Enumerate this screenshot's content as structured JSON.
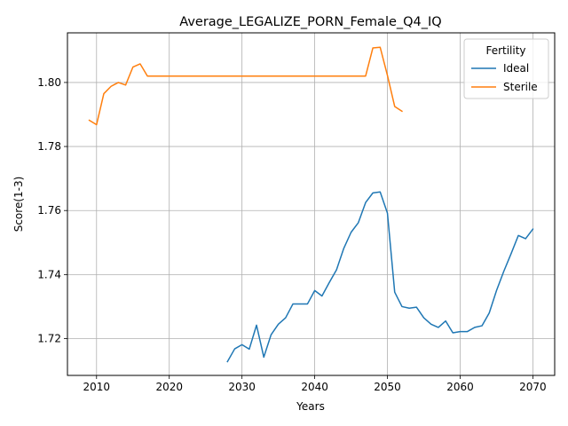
{
  "chart_data": {
    "type": "line",
    "title": "Average_LEGALIZE_PORN_Female_Q4_IQ",
    "xlabel": "Years",
    "ylabel": "Score(1-3)",
    "xlim": [
      2006,
      2073
    ],
    "ylim": [
      1.7085,
      1.8155
    ],
    "xticks": [
      2010,
      2020,
      2030,
      2040,
      2050,
      2060,
      2070
    ],
    "yticks": [
      1.72,
      1.74,
      1.76,
      1.78,
      1.8
    ],
    "ytick_labels": [
      "1.72",
      "1.74",
      "1.76",
      "1.78",
      "1.80"
    ],
    "grid": true,
    "legend": {
      "title": "Fertility",
      "placement": "top-right"
    },
    "series": [
      {
        "name": "Ideal",
        "color": "#1f77b4",
        "x": [
          2028,
          2029,
          2030,
          2031,
          2032,
          2033,
          2034,
          2035,
          2036,
          2037,
          2038,
          2039,
          2040,
          2041,
          2042,
          2043,
          2044,
          2045,
          2046,
          2047,
          2048,
          2049,
          2050,
          2051,
          2052,
          2053,
          2054,
          2055,
          2056,
          2057,
          2058,
          2059,
          2060,
          2061,
          2062,
          2063,
          2064,
          2065,
          2066,
          2067,
          2068,
          2069,
          2070
        ],
        "values": [
          1.7128,
          1.7168,
          1.7181,
          1.7167,
          1.7242,
          1.7142,
          1.7212,
          1.7245,
          1.7265,
          1.7308,
          1.7308,
          1.7308,
          1.735,
          1.7333,
          1.7375,
          1.7415,
          1.7482,
          1.7532,
          1.7562,
          1.7625,
          1.7655,
          1.7658,
          1.7592,
          1.7345,
          1.73,
          1.7295,
          1.7298,
          1.7265,
          1.7245,
          1.7235,
          1.7255,
          1.7218,
          1.7222,
          1.7222,
          1.7235,
          1.724,
          1.728,
          1.735,
          1.741,
          1.7465,
          1.7522,
          1.7512,
          1.7542
        ]
      },
      {
        "name": "Sterile",
        "color": "#ff7f0e",
        "x": [
          2009,
          2010,
          2011,
          2012,
          2013,
          2014,
          2015,
          2016,
          2017,
          2018,
          2019,
          2020,
          2021,
          2022,
          2023,
          2024,
          2025,
          2026,
          2027,
          2028,
          2029,
          2030,
          2031,
          2032,
          2033,
          2034,
          2035,
          2036,
          2037,
          2038,
          2039,
          2040,
          2041,
          2042,
          2043,
          2044,
          2045,
          2046,
          2047,
          2048,
          2049,
          2050,
          2051,
          2052
        ],
        "values": [
          1.7882,
          1.7868,
          1.7965,
          1.7988,
          1.8,
          1.7992,
          1.8048,
          1.8058,
          1.802,
          1.802,
          1.802,
          1.802,
          1.802,
          1.802,
          1.802,
          1.802,
          1.802,
          1.802,
          1.802,
          1.802,
          1.802,
          1.802,
          1.802,
          1.802,
          1.802,
          1.802,
          1.802,
          1.802,
          1.802,
          1.802,
          1.802,
          1.802,
          1.802,
          1.802,
          1.802,
          1.802,
          1.802,
          1.802,
          1.802,
          1.8108,
          1.811,
          1.8022,
          1.7925,
          1.791
        ]
      }
    ]
  }
}
